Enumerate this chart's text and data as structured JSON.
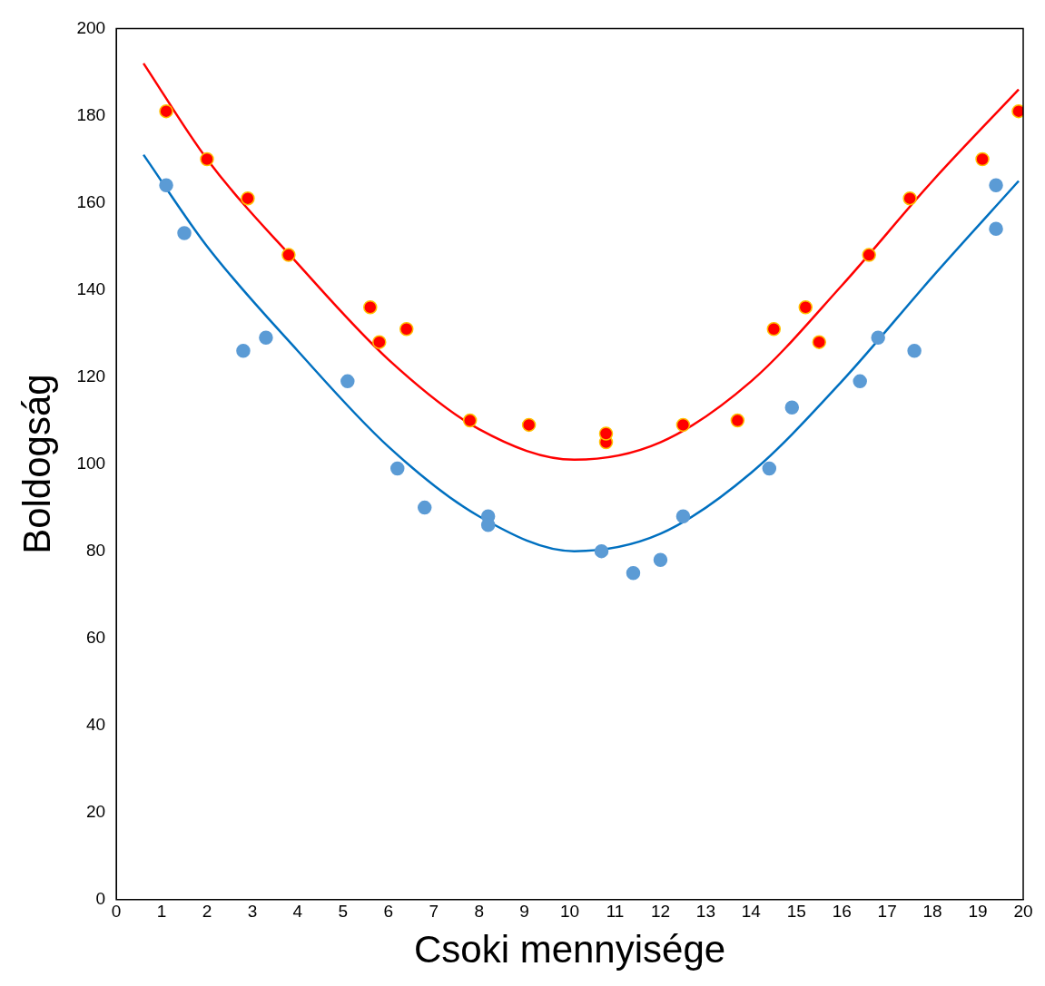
{
  "chart_data": {
    "type": "scatter",
    "xlabel": "Csoki mennyisége",
    "ylabel": "Boldogság",
    "xlim": [
      0,
      20
    ],
    "xticks": [
      0,
      1,
      2,
      3,
      4,
      5,
      6,
      7,
      8,
      9,
      10,
      11,
      12,
      13,
      14,
      15,
      16,
      17,
      18,
      19,
      20
    ],
    "ylim": [
      0,
      200
    ],
    "yticks": [
      0,
      20,
      40,
      60,
      80,
      100,
      120,
      140,
      160,
      180,
      200
    ],
    "grid": false,
    "legend": false,
    "series": [
      {
        "type": "line",
        "marker": "none",
        "color": "#ff0000",
        "x": [
          0.6,
          2,
          4,
          6,
          8,
          10.1,
          12,
          14,
          16,
          18,
          19.9
        ],
        "values": [
          192,
          170,
          146,
          124,
          108,
          101,
          105,
          119,
          141,
          165,
          186
        ]
      },
      {
        "type": "line",
        "marker": "none",
        "color": "#0070c0",
        "x": [
          0.6,
          2,
          4,
          6,
          8,
          10.1,
          12,
          14,
          16,
          18,
          19.9
        ],
        "values": [
          171,
          150,
          126,
          104,
          88,
          80,
          84,
          98,
          119,
          143,
          165
        ]
      },
      {
        "type": "scatter",
        "marker": "circle",
        "color": "#5b9bd5",
        "x": [
          1.1,
          1.5,
          2.8,
          3.3,
          5.1,
          6.2,
          6.8,
          8.2,
          8.2,
          10.7,
          11.4,
          12.0,
          12.5,
          14.4,
          14.9,
          16.4,
          16.8,
          17.6,
          19.4,
          19.4
        ],
        "values": [
          164,
          153,
          126,
          129,
          119,
          99,
          90,
          88,
          86,
          80,
          75,
          78,
          88,
          99,
          113,
          119,
          129,
          126,
          154,
          164
        ]
      },
      {
        "type": "scatter",
        "marker": "circle",
        "color": "#ff0000",
        "x": [
          1.1,
          2.0,
          2.9,
          3.8,
          5.6,
          5.8,
          6.4,
          7.8,
          9.1,
          10.8,
          10.8,
          12.5,
          13.7,
          14.5,
          15.2,
          15.5,
          16.6,
          17.5,
          19.1,
          19.9
        ],
        "values": [
          181,
          170,
          161,
          148,
          136,
          128,
          131,
          110,
          109,
          105,
          107,
          109,
          110,
          131,
          136,
          128,
          148,
          161,
          170,
          181
        ]
      }
    ]
  }
}
